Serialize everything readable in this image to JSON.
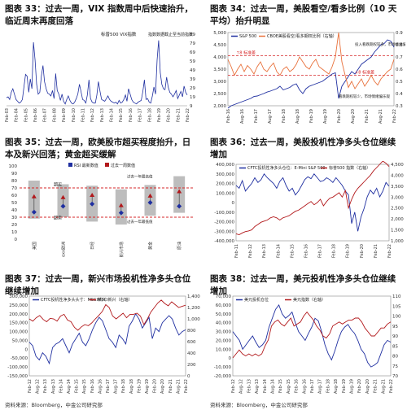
{
  "titles": {
    "c33": "图表 33：过去一周，VIX 指数周中后快速抬升，临近周末再度回落",
    "c34": "图表 34：过去一周，美股看空/看多比例（10 天平均）抬升明显",
    "c35": "图表 35：过去一周，欧美股市超买程度抬升，日本及新兴回落；黄金超买缓解",
    "c36": "图表 36：过去一周，美股投机性净多头仓位继续增加",
    "c37": "图表 37：过去一周，新兴市场投机性净多头仓位继续增加",
    "c38": "图表 38：过去一周，美元投机性净多头仓位继续增加"
  },
  "sources": {
    "left": "资料来源：Bloomberg，中金公司研究部",
    "right": "资料来源：Bloomberg，中金公司研究部"
  },
  "colors": {
    "blue": "#1f2fa0",
    "red": "#b2181b",
    "dash": "#d62728",
    "gray": "#bdbdbd",
    "orange": "#e8703a"
  },
  "chart_data": [
    {
      "id": "c33",
      "type": "line",
      "legend": [
        "标普500 VIX指数",
        "指数数据截止至当前指数"
      ],
      "x_ticks": [
        "Feb-03",
        "Feb-04",
        "Feb-05",
        "Feb-06",
        "Feb-07",
        "Feb-08",
        "Feb-09",
        "Feb-10",
        "Feb-11",
        "Feb-12",
        "Feb-13",
        "Feb-14",
        "Feb-15",
        "Feb-16",
        "Feb-17",
        "Feb-18",
        "Feb-19",
        "Feb-20",
        "Feb-21",
        "Feb-22"
      ],
      "y_ticks": [
        9,
        19,
        29,
        39,
        49,
        59,
        69,
        79,
        89
      ],
      "ylim": [
        9,
        89
      ],
      "series": [
        {
          "values": [
            18,
            19,
            16,
            24,
            28,
            22,
            16,
            14,
            12,
            13,
            16,
            30,
            44,
            42,
            24,
            39,
            28,
            80,
            60,
            33,
            22,
            24,
            42,
            54,
            36,
            28,
            23,
            22,
            20,
            26,
            17,
            45,
            26,
            22,
            15,
            22,
            14,
            11,
            16,
            20,
            15,
            12,
            11,
            13,
            17,
            22,
            33,
            25,
            16,
            15,
            12,
            21,
            38,
            17,
            13,
            12,
            12,
            21,
            36,
            25,
            16,
            15,
            14,
            17,
            20,
            16,
            14,
            13,
            12,
            13,
            11,
            15,
            12,
            13,
            16,
            21,
            14,
            28,
            22,
            16,
            13,
            12,
            11,
            13,
            14,
            15,
            25,
            38,
            16,
            17,
            13,
            12,
            20,
            30,
            22,
            60,
            82,
            46,
            33,
            28,
            27,
            41,
            30,
            24,
            22,
            19,
            22,
            26,
            17,
            21,
            25,
            19,
            31,
            24,
            21
          ]
        }
      ]
    },
    {
      "id": "c34",
      "type": "line",
      "legend": [
        "S&P 500",
        "CBOE美股看空/看多期权比例（右轴）"
      ],
      "x_ticks": [
        "Feb-16",
        "Aug-16",
        "Feb-17",
        "Aug-17",
        "Feb-18",
        "Aug-18",
        "Feb-19",
        "Aug-19",
        "Feb-20",
        "Aug-20",
        "Feb-21",
        "Aug-21",
        "Feb-22"
      ],
      "y_ticks": [
        2000,
        2500,
        3000,
        3500,
        4000,
        4500,
        5000
      ],
      "y2_ticks": [
        0.3,
        0.4,
        0.5,
        0.6,
        0.7,
        0.8,
        0.9
      ],
      "ylim": [
        2000,
        5000
      ],
      "y2lim": [
        0.3,
        0.9
      ],
      "hlines_right": [
        0.71,
        0.55
      ],
      "annotations": [
        "↑8 标准差",
        "投入看跌期权较多，市场情绪偏空",
        "↓8 标准差",
        "看跌期权较少，市场情绪偏乐观"
      ],
      "series": [
        {
          "name": "S&P 500",
          "values": [
            1900,
            2000,
            2050,
            2100,
            2150,
            2200,
            2250,
            2300,
            2380,
            2400,
            2450,
            2500,
            2560,
            2600,
            2650,
            2700,
            2800,
            2650,
            2700,
            2750,
            2850,
            2900,
            2650,
            2500,
            2700,
            2800,
            2850,
            2900,
            2950,
            3000,
            3100,
            3200,
            3300,
            3350,
            2300,
            2800,
            3000,
            3200,
            3400,
            3300,
            3500,
            3700,
            3800,
            3900,
            4000,
            4200,
            4350,
            4500,
            4550,
            4700,
            4650,
            4400
          ]
        },
        {
          "name": "CBOE美股看空/看多期权比例（右轴）",
          "values": [
            0.68,
            0.62,
            0.55,
            0.6,
            0.64,
            0.58,
            0.63,
            0.6,
            0.56,
            0.62,
            0.66,
            0.6,
            0.58,
            0.62,
            0.65,
            0.58,
            0.55,
            0.6,
            0.62,
            0.58,
            0.6,
            0.64,
            0.7,
            0.66,
            0.62,
            0.6,
            0.65,
            0.68,
            0.62,
            0.6,
            0.58,
            0.56,
            0.62,
            0.7,
            0.9,
            0.66,
            0.55,
            0.45,
            0.5,
            0.44,
            0.48,
            0.52,
            0.46,
            0.5,
            0.55,
            0.5,
            0.47,
            0.52,
            0.55,
            0.58,
            0.6,
            0.68
          ]
        }
      ]
    },
    {
      "id": "c35",
      "type": "scatter",
      "legend": [
        "RSI 最新数值",
        "过去一周数值",
        "过去一年最高值",
        "过去一年最低值"
      ],
      "categories": [
        "美国",
        "Stoxx欧洲",
        "日经",
        "MSCI新兴市场",
        "黄金",
        "原油"
      ],
      "y_ticks": [
        0,
        10,
        20,
        30,
        40,
        50,
        60,
        70,
        80,
        90,
        100
      ],
      "ylim": [
        0,
        100
      ],
      "hlines": [
        70,
        30
      ],
      "labels": {
        "top": "超买",
        "bottom": "超卖"
      },
      "rsi_latest": [
        45,
        53,
        42,
        42,
        58,
        62
      ],
      "past_week": [
        58,
        57,
        48,
        50,
        60,
        67
      ],
      "year_high": [
        80,
        75,
        73,
        68,
        74,
        86
      ],
      "year_low": [
        28,
        30,
        24,
        20,
        32,
        36
      ],
      "red_mark": [
        58,
        57,
        60,
        46,
        59,
        65
      ],
      "blue_mark": [
        37,
        45,
        48,
        36,
        50,
        45
      ]
    },
    {
      "id": "c36",
      "type": "line",
      "legend": [
        "CFTC投机性净多头仓位：E-Mini S&P 500",
        "标普500 指数（右轴）"
      ],
      "x_ticks": [
        "Feb-11",
        "Feb-12",
        "Feb-13",
        "Feb-14",
        "Feb-15",
        "Feb-16",
        "Feb-17",
        "Feb-18",
        "Feb-19",
        "Feb-20",
        "Feb-21",
        "Feb-22"
      ],
      "y_ticks": [
        -400000,
        -300000,
        -200000,
        -100000,
        0,
        100000,
        200000,
        300000,
        400000
      ],
      "y2_ticks": [
        1000,
        1500,
        2000,
        2500,
        3000,
        3500,
        4000,
        4500
      ],
      "ylim": [
        -400000,
        400000
      ],
      "y2lim": [
        1000,
        4500
      ],
      "series": [
        {
          "name": "CFTC投机性净多头仓位：E-Mini S&P 500",
          "values": [
            180000,
            150000,
            230000,
            120000,
            160000,
            200000,
            260000,
            210000,
            240000,
            300000,
            260000,
            230000,
            200000,
            150000,
            220000,
            260000,
            180000,
            120000,
            150000,
            80000,
            120000,
            180000,
            240000,
            270000,
            250000,
            300000,
            260000,
            220000,
            230000,
            260000,
            240000,
            210000,
            260000,
            220000,
            180000,
            120000,
            80000,
            -220000,
            -100000,
            -300000,
            -150000,
            -60000,
            60000,
            130000,
            90000,
            150000,
            60000,
            120000,
            210000,
            170000
          ]
        },
        {
          "name": "标普500 指数（右轴）",
          "values": [
            1320,
            1280,
            1360,
            1420,
            1450,
            1500,
            1650,
            1750,
            1850,
            1900,
            1950,
            2050,
            2100,
            2050,
            1950,
            2050,
            2100,
            2150,
            2250,
            2350,
            2400,
            2500,
            2600,
            2700,
            2800,
            2650,
            2750,
            2900,
            2600,
            2800,
            2950,
            3000,
            3100,
            3200,
            3000,
            3300,
            2500,
            2900,
            3200,
            3400,
            3550,
            3700,
            3850,
            4000,
            4200,
            4350,
            4500,
            4650,
            4550,
            4400
          ]
        }
      ]
    },
    {
      "id": "c37",
      "type": "line",
      "legend": [
        "CFTC投机性净多头头寸：MSCI新兴",
        "MSCI新兴（右轴）"
      ],
      "x_ticks": [
        "Feb-12",
        "Aug-12",
        "Feb-13",
        "Aug-13",
        "Feb-14",
        "Aug-14",
        "Feb-15",
        "Aug-15",
        "Feb-16",
        "Aug-16",
        "Feb-17",
        "Aug-17",
        "Feb-18",
        "Aug-18",
        "Feb-19",
        "Aug-19",
        "Feb-20",
        "Aug-20",
        "Feb-21",
        "Aug-21",
        "Feb-22"
      ],
      "y_ticks": [
        -150000,
        -100000,
        -50000,
        0,
        50000,
        100000,
        150000,
        200000,
        250000,
        300000
      ],
      "y2_ticks": [
        0,
        200,
        400,
        600,
        800,
        1000,
        1200,
        1400
      ],
      "ylim": [
        -150000,
        300000
      ],
      "y2lim": [
        0,
        1400
      ],
      "series": [
        {
          "name": "CFTC投机性净多头头寸：MSCI新兴",
          "values": [
            40000,
            20000,
            -40000,
            -60000,
            -20000,
            -40000,
            -80000,
            10000,
            30000,
            40000,
            60000,
            20000,
            -20000,
            30000,
            60000,
            90000,
            40000,
            20000,
            60000,
            110000,
            150000,
            180000,
            160000,
            110000,
            60000,
            40000,
            10000,
            80000,
            60000,
            30000,
            130000,
            160000,
            200000,
            170000,
            120000,
            150000,
            180000,
            60000,
            120000,
            100000,
            150000,
            170000,
            190000,
            170000,
            120000,
            80000,
            100000,
            110000
          ]
        },
        {
          "name": "MSCI新兴（右轴）",
          "values": [
            1000,
            960,
            1020,
            1060,
            990,
            950,
            1010,
            1000,
            960,
            1050,
            1080,
            980,
            950,
            850,
            800,
            860,
            900,
            880,
            930,
            1000,
            1060,
            1130,
            1250,
            1200,
            1050,
            1000,
            1050,
            1100,
            1020,
            1080,
            1080,
            1100,
            1050,
            900,
            1000,
            1120,
            1200,
            1280,
            1330,
            1270,
            1230,
            1300,
            1250,
            1200,
            1220,
            1240
          ]
        }
      ]
    },
    {
      "id": "c38",
      "type": "line",
      "legend": [
        "美元投机仓位",
        "美元指数（右轴）"
      ],
      "x_ticks": [
        "Feb-12",
        "Aug-12",
        "Feb-13",
        "Aug-13",
        "Feb-14",
        "Aug-14",
        "Feb-15",
        "Aug-15",
        "Feb-16",
        "Aug-16",
        "Feb-17",
        "Aug-17",
        "Feb-18",
        "Aug-18",
        "Feb-19",
        "Aug-19",
        "Feb-20",
        "Aug-20",
        "Feb-21",
        "Aug-21",
        "Feb-22"
      ],
      "y_ticks": [
        -20000,
        -10000,
        0,
        10000,
        20000,
        30000,
        40000,
        50000,
        60000,
        70000
      ],
      "y2_ticks": [
        70,
        75,
        80,
        85,
        90,
        95,
        100,
        105,
        110
      ],
      "ylim": [
        -20000,
        70000
      ],
      "y2lim": [
        70,
        110
      ],
      "series": [
        {
          "name": "美元投机仓位",
          "values": [
            30000,
            25000,
            20000,
            10000,
            15000,
            20000,
            25000,
            18000,
            12000,
            15000,
            20000,
            35000,
            45000,
            55000,
            60000,
            50000,
            45000,
            48000,
            52000,
            40000,
            30000,
            25000,
            20000,
            28000,
            35000,
            45000,
            42000,
            30000,
            15000,
            5000,
            -2000,
            8000,
            20000,
            30000,
            35000,
            38000,
            32000,
            28000,
            20000,
            10000,
            5000,
            -5000,
            -10000,
            -8000,
            -5000,
            5000,
            15000,
            20000,
            18000
          ]
        },
        {
          "name": "美元指数（右轴）",
          "values": [
            79,
            81,
            83,
            81,
            80,
            81,
            80,
            81,
            80,
            81,
            85,
            88,
            95,
            97,
            98,
            96,
            95,
            97,
            99,
            95,
            96,
            97,
            100,
            102,
            100,
            98,
            95,
            93,
            90,
            89,
            91,
            95,
            96,
            97,
            96,
            97,
            98,
            98,
            99,
            99,
            97,
            94,
            92,
            90,
            90,
            92,
            94,
            94,
            96,
            97
          ]
        }
      ]
    }
  ]
}
